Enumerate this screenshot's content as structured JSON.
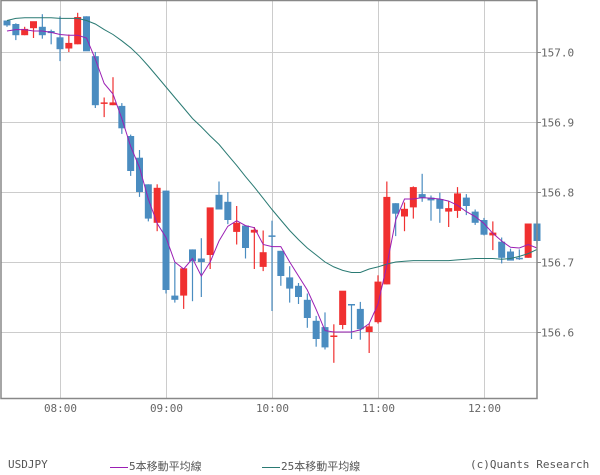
{
  "chart_data": {
    "type": "candlestick",
    "title": "",
    "symbol": "USDJPY",
    "interval_minutes": 5,
    "xlabel": "",
    "ylabel": "",
    "ylim": [
      156.52,
      157.075
    ],
    "yticks": [
      157.0,
      156.9,
      156.8,
      156.7,
      156.6
    ],
    "ytick_labels": [
      "157.0",
      "156.9",
      "156.8",
      "156.7",
      "156.6"
    ],
    "xtick_labels": [
      "08:00",
      "09:00",
      "10:00",
      "11:00",
      "12:00"
    ],
    "grid": true,
    "legend": [
      {
        "name": "5本移動平均線",
        "color": "#9b1fb4"
      },
      {
        "name": "25本移動平均線",
        "color": "#2a7a73"
      }
    ],
    "colors": {
      "up": "#f03030",
      "down": "#4a8cc0",
      "ma5": "#9b1fb4",
      "ma25": "#2a7a73",
      "grid": "#cccccc",
      "border": "#888888"
    },
    "candles": [
      {
        "t": "07:30",
        "o": 157.045,
        "h": 157.045,
        "l": 157.036,
        "c": 157.038
      },
      {
        "t": "07:35",
        "o": 157.04,
        "h": 157.041,
        "l": 157.017,
        "c": 157.024
      },
      {
        "t": "07:40",
        "o": 157.024,
        "h": 157.036,
        "l": 157.024,
        "c": 157.033
      },
      {
        "t": "07:45",
        "o": 157.034,
        "h": 157.036,
        "l": 157.02,
        "c": 157.044
      },
      {
        "t": "07:50",
        "o": 157.036,
        "h": 157.054,
        "l": 157.019,
        "c": 157.024
      },
      {
        "t": "07:55",
        "o": 157.03,
        "h": 157.032,
        "l": 157.011,
        "c": 157.027
      },
      {
        "t": "08:00",
        "o": 157.021,
        "h": 157.051,
        "l": 156.987,
        "c": 157.004
      },
      {
        "t": "08:05",
        "o": 157.005,
        "h": 157.025,
        "l": 157.0,
        "c": 157.013
      },
      {
        "t": "08:10",
        "o": 157.011,
        "h": 157.056,
        "l": 157.011,
        "c": 157.05
      },
      {
        "t": "08:15",
        "o": 157.051,
        "h": 157.051,
        "l": 157.002,
        "c": 157.001
      },
      {
        "t": "08:20",
        "o": 156.994,
        "h": 157.0,
        "l": 156.92,
        "c": 156.924
      },
      {
        "t": "08:25",
        "o": 156.928,
        "h": 156.935,
        "l": 156.907,
        "c": 156.928
      },
      {
        "t": "08:30",
        "o": 156.924,
        "h": 156.964,
        "l": 156.924,
        "c": 156.928
      },
      {
        "t": "08:35",
        "o": 156.923,
        "h": 156.927,
        "l": 156.883,
        "c": 156.891
      },
      {
        "t": "08:40",
        "o": 156.88,
        "h": 156.882,
        "l": 156.823,
        "c": 156.83
      },
      {
        "t": "08:45",
        "o": 156.849,
        "h": 156.86,
        "l": 156.793,
        "c": 156.8
      },
      {
        "t": "08:50",
        "o": 156.811,
        "h": 156.811,
        "l": 156.758,
        "c": 156.762
      },
      {
        "t": "08:55",
        "o": 156.756,
        "h": 156.811,
        "l": 156.744,
        "c": 156.806
      },
      {
        "t": "09:00",
        "o": 156.802,
        "h": 156.802,
        "l": 156.655,
        "c": 156.66
      },
      {
        "t": "09:05",
        "o": 156.652,
        "h": 156.699,
        "l": 156.642,
        "c": 156.646
      },
      {
        "t": "09:10",
        "o": 156.652,
        "h": 156.69,
        "l": 156.633,
        "c": 156.691
      },
      {
        "t": "09:15",
        "o": 156.718,
        "h": 156.718,
        "l": 156.644,
        "c": 156.701
      },
      {
        "t": "09:20",
        "o": 156.705,
        "h": 156.734,
        "l": 156.65,
        "c": 156.7
      },
      {
        "t": "09:25",
        "o": 156.71,
        "h": 156.775,
        "l": 156.69,
        "c": 156.778
      },
      {
        "t": "09:30",
        "o": 156.796,
        "h": 156.815,
        "l": 156.778,
        "c": 156.775
      },
      {
        "t": "09:35",
        "o": 156.786,
        "h": 156.8,
        "l": 156.754,
        "c": 156.76
      },
      {
        "t": "09:40",
        "o": 156.743,
        "h": 156.78,
        "l": 156.725,
        "c": 156.756
      },
      {
        "t": "09:45",
        "o": 156.752,
        "h": 156.748,
        "l": 156.705,
        "c": 156.72
      },
      {
        "t": "09:50",
        "o": 156.742,
        "h": 156.75,
        "l": 156.69,
        "c": 156.746
      },
      {
        "t": "09:55",
        "o": 156.693,
        "h": 156.745,
        "l": 156.687,
        "c": 156.714
      },
      {
        "t": "10:00",
        "o": 156.738,
        "h": 156.759,
        "l": 156.63,
        "c": 156.737
      },
      {
        "t": "10:05",
        "o": 156.716,
        "h": 156.716,
        "l": 156.666,
        "c": 156.68
      },
      {
        "t": "10:10",
        "o": 156.678,
        "h": 156.694,
        "l": 156.642,
        "c": 156.662
      },
      {
        "t": "10:15",
        "o": 156.666,
        "h": 156.67,
        "l": 156.64,
        "c": 156.65
      },
      {
        "t": "10:20",
        "o": 156.646,
        "h": 156.655,
        "l": 156.606,
        "c": 156.62
      },
      {
        "t": "10:25",
        "o": 156.616,
        "h": 156.623,
        "l": 156.579,
        "c": 156.59
      },
      {
        "t": "10:30",
        "o": 156.607,
        "h": 156.628,
        "l": 156.575,
        "c": 156.578
      },
      {
        "t": "10:35",
        "o": 156.593,
        "h": 156.611,
        "l": 156.556,
        "c": 156.595
      },
      {
        "t": "10:40",
        "o": 156.61,
        "h": 156.65,
        "l": 156.604,
        "c": 156.659
      },
      {
        "t": "10:45",
        "o": 156.64,
        "h": 156.64,
        "l": 156.59,
        "c": 156.639
      },
      {
        "t": "10:50",
        "o": 156.633,
        "h": 156.643,
        "l": 156.589,
        "c": 156.604
      },
      {
        "t": "10:55",
        "o": 156.6,
        "h": 156.612,
        "l": 156.57,
        "c": 156.608
      },
      {
        "t": "11:00",
        "o": 156.614,
        "h": 156.681,
        "l": 156.612,
        "c": 156.672
      },
      {
        "t": "11:05",
        "o": 156.668,
        "h": 156.815,
        "l": 156.668,
        "c": 156.793
      },
      {
        "t": "11:10",
        "o": 156.784,
        "h": 156.784,
        "l": 156.737,
        "c": 156.769
      },
      {
        "t": "11:15",
        "o": 156.765,
        "h": 156.785,
        "l": 156.744,
        "c": 156.776
      },
      {
        "t": "11:20",
        "o": 156.778,
        "h": 156.808,
        "l": 156.762,
        "c": 156.807
      },
      {
        "t": "11:25",
        "o": 156.797,
        "h": 156.826,
        "l": 156.786,
        "c": 156.791
      },
      {
        "t": "11:30",
        "o": 156.792,
        "h": 156.795,
        "l": 156.759,
        "c": 156.788
      },
      {
        "t": "11:35",
        "o": 156.79,
        "h": 156.799,
        "l": 156.756,
        "c": 156.776
      },
      {
        "t": "11:40",
        "o": 156.772,
        "h": 156.787,
        "l": 156.75,
        "c": 156.777
      },
      {
        "t": "11:45",
        "o": 156.773,
        "h": 156.807,
        "l": 156.763,
        "c": 156.798
      },
      {
        "t": "11:50",
        "o": 156.792,
        "h": 156.797,
        "l": 156.767,
        "c": 156.78
      },
      {
        "t": "11:55",
        "o": 156.772,
        "h": 156.775,
        "l": 156.753,
        "c": 156.756
      },
      {
        "t": "12:00",
        "o": 156.76,
        "h": 156.763,
        "l": 156.738,
        "c": 156.739
      },
      {
        "t": "12:05",
        "o": 156.738,
        "h": 156.758,
        "l": 156.717,
        "c": 156.742
      },
      {
        "t": "12:10",
        "o": 156.729,
        "h": 156.735,
        "l": 156.698,
        "c": 156.706
      },
      {
        "t": "12:15",
        "o": 156.715,
        "h": 156.719,
        "l": 156.706,
        "c": 156.702
      },
      {
        "t": "12:20",
        "o": 156.706,
        "h": 156.718,
        "l": 156.703,
        "c": 156.705
      },
      {
        "t": "12:25",
        "o": 156.706,
        "h": 156.755,
        "l": 156.706,
        "c": 156.755
      },
      {
        "t": "12:30",
        "o": 156.755,
        "h": 156.755,
        "l": 156.725,
        "c": 156.73
      }
    ],
    "ma5": [
      157.03,
      157.032,
      157.032,
      157.03,
      157.03,
      157.028,
      157.025,
      157.024,
      157.024,
      157.02,
      156.99,
      156.955,
      156.94,
      156.905,
      156.865,
      156.835,
      156.79,
      156.755,
      156.735,
      156.7,
      156.69,
      156.705,
      156.68,
      156.7,
      156.73,
      156.751,
      156.759,
      156.752,
      156.749,
      156.725,
      156.722,
      156.722,
      156.7,
      156.68,
      156.66,
      156.632,
      156.602,
      156.6,
      156.6,
      156.6,
      156.603,
      156.612,
      156.64,
      156.695,
      156.76,
      156.79,
      156.79,
      156.792,
      156.791,
      156.79,
      156.787,
      156.781,
      156.772,
      156.765,
      156.755,
      156.741,
      156.73,
      156.721,
      156.72,
      156.725,
      156.72
    ],
    "ma25": [
      157.045,
      157.048,
      157.049,
      157.049,
      157.049,
      157.049,
      157.048,
      157.048,
      157.048,
      157.045,
      157.04,
      157.032,
      157.025,
      157.016,
      157.006,
      156.994,
      156.98,
      156.965,
      156.95,
      156.935,
      156.92,
      156.905,
      156.893,
      156.88,
      156.868,
      156.853,
      156.838,
      156.822,
      156.807,
      156.791,
      156.775,
      156.76,
      156.745,
      156.732,
      156.72,
      156.71,
      156.7,
      156.693,
      156.688,
      156.685,
      156.685,
      156.69,
      156.693,
      156.697,
      156.7,
      156.701,
      156.702,
      156.702,
      156.702,
      156.702,
      156.702,
      156.703,
      156.704,
      156.705,
      156.705,
      156.705,
      156.704,
      156.705,
      156.708,
      156.712,
      156.718
    ]
  },
  "footer": {
    "symbol": "USDJPY",
    "ma5_label": "5本移動平均線",
    "ma25_label": "25本移動平均線",
    "credit": "(c)Quants Research"
  }
}
